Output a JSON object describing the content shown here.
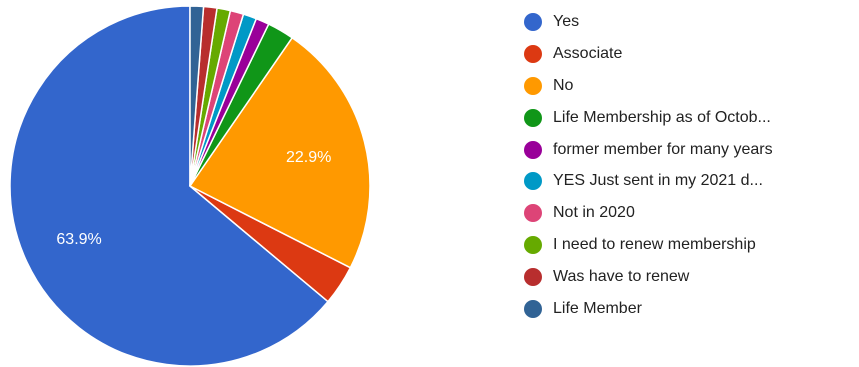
{
  "chart_data": {
    "type": "pie",
    "start_angle_deg": 90,
    "direction": "counterclockwise",
    "slices": [
      {
        "label": "Yes",
        "value": 63.9,
        "color": "#3366cc",
        "data_label": "63.9%"
      },
      {
        "label": "Associate",
        "value": 3.6,
        "color": "#dc3912",
        "data_label": ""
      },
      {
        "label": "No",
        "value": 22.9,
        "color": "#ff9900",
        "data_label": "22.9%"
      },
      {
        "label": "Life Membership as of Octob...",
        "value": 2.4,
        "color": "#109618",
        "data_label": ""
      },
      {
        "label": "former member for many years",
        "value": 1.2,
        "color": "#990099",
        "data_label": ""
      },
      {
        "label": "YES Just sent in my 2021 d...",
        "value": 1.2,
        "color": "#0099c6",
        "data_label": ""
      },
      {
        "label": "Not in 2020",
        "value": 1.2,
        "color": "#dd4477",
        "data_label": ""
      },
      {
        "label": "I need to renew membership",
        "value": 1.2,
        "color": "#66aa00",
        "data_label": ""
      },
      {
        "label": "Was have to renew",
        "value": 1.2,
        "color": "#b82e2e",
        "data_label": ""
      },
      {
        "label": "Life Member",
        "value": 1.2,
        "color": "#316395",
        "data_label": ""
      }
    ],
    "legend_position": "right"
  }
}
